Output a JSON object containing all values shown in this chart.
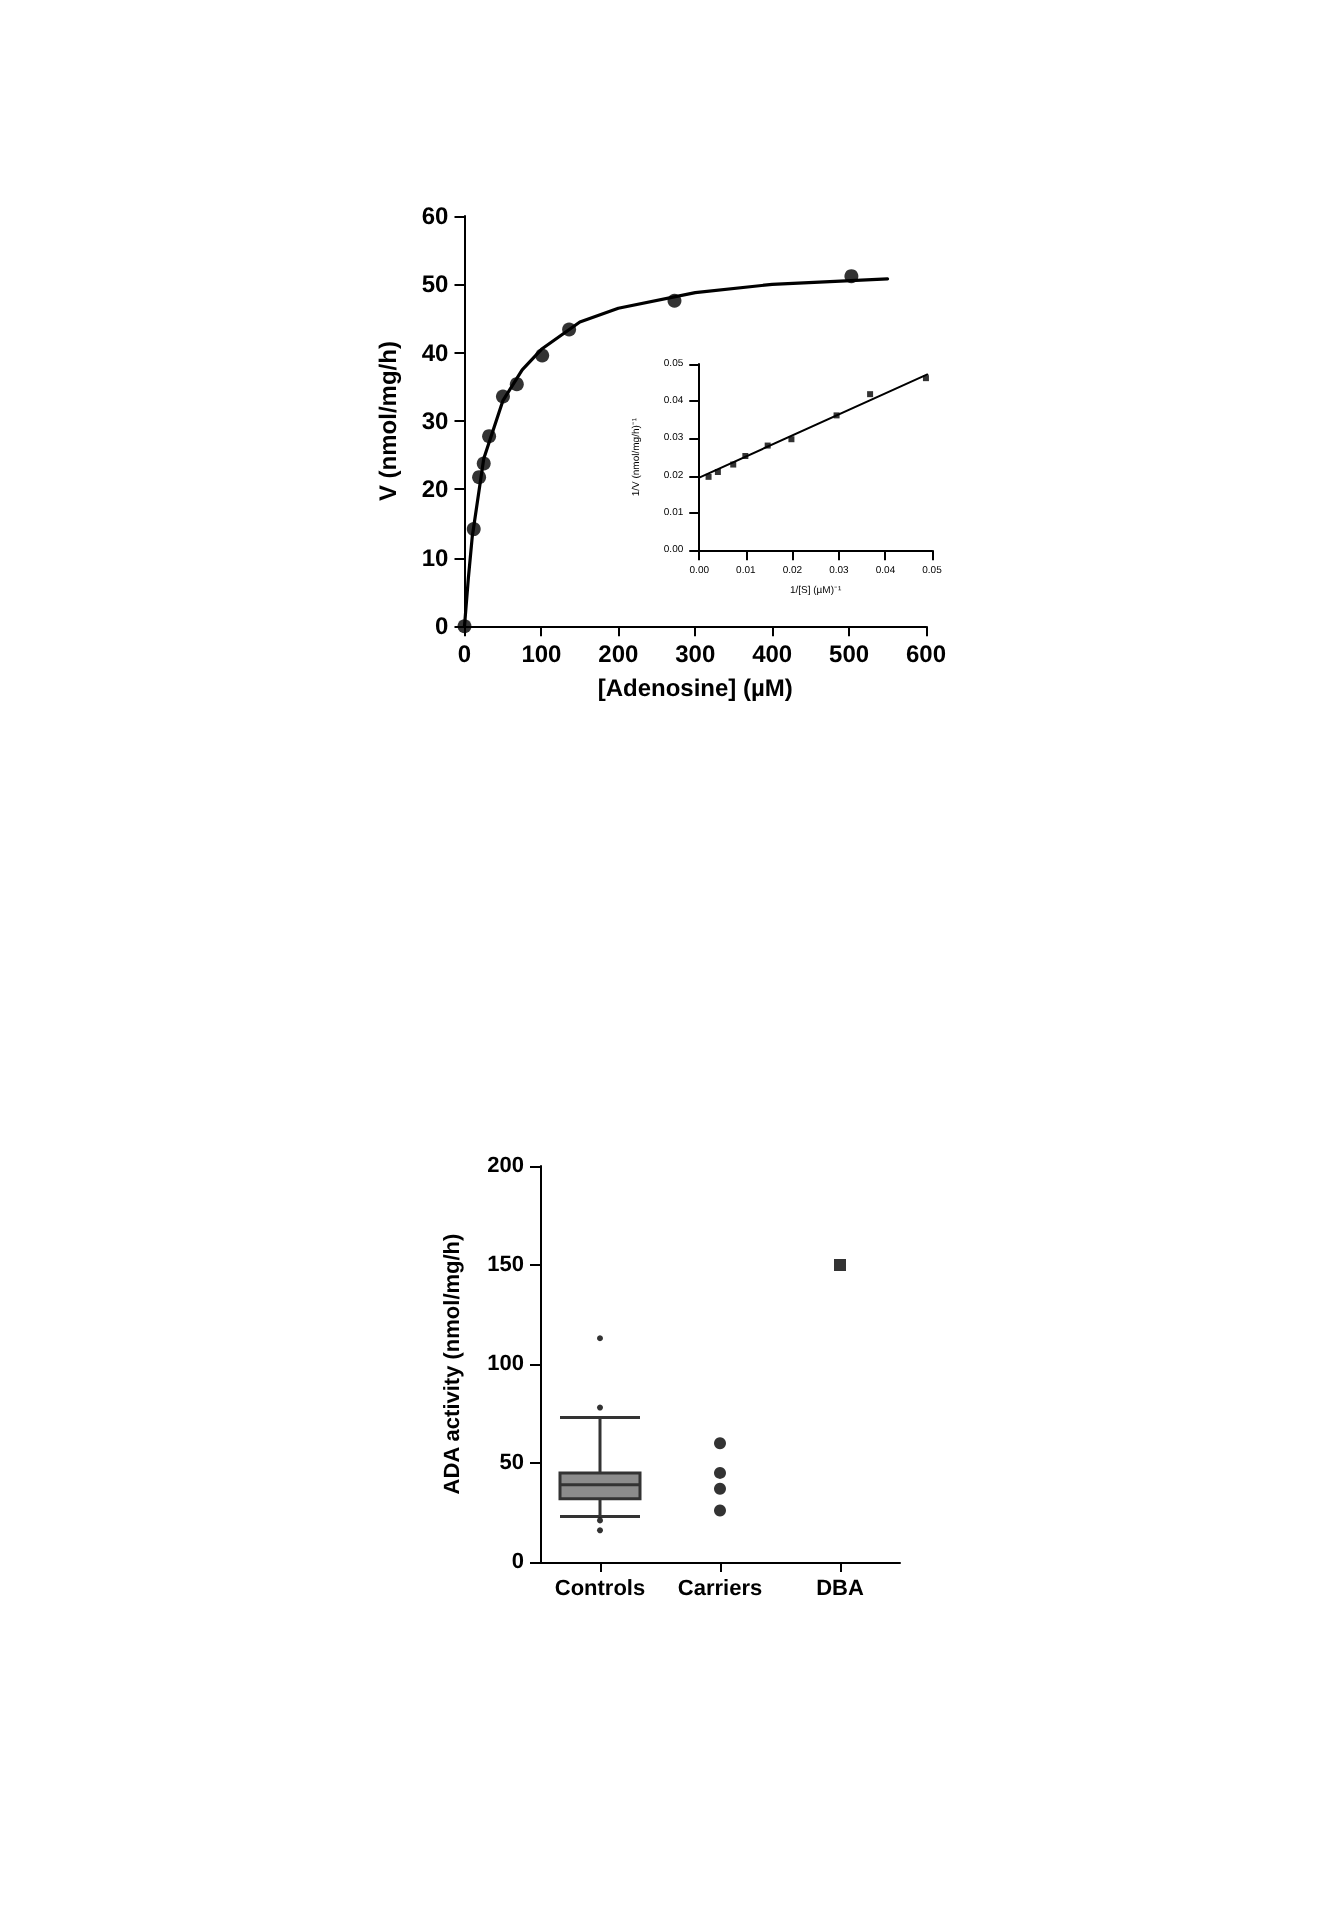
{
  "chart_data": [
    {
      "type": "scatter",
      "xlabel": "[Adenosine] (µM)",
      "ylabel": "V (nmol/mg/h)",
      "xlim": [
        0,
        600
      ],
      "xticks": [
        0,
        100,
        200,
        300,
        400,
        500,
        600
      ],
      "ylim": [
        0,
        60
      ],
      "yticks": [
        0,
        10,
        20,
        30,
        40,
        50,
        60
      ],
      "series": [
        {
          "type": "scatter",
          "color": "#000000",
          "marker": "circle",
          "x": [
            0,
            12,
            19,
            25,
            32,
            50,
            68,
            101,
            136,
            273,
            503
          ],
          "values": [
            0,
            14.2,
            21.8,
            23.8,
            27.8,
            33.6,
            35.4,
            39.6,
            43.4,
            47.6,
            51.2
          ]
        },
        {
          "type": "line",
          "color": "#000000",
          "marker": "none",
          "line_style": "solid",
          "x": [
            0,
            5,
            10,
            25,
            50,
            75,
            100,
            150,
            200,
            300,
            400,
            550
          ],
          "values": [
            0,
            7,
            13,
            24.5,
            33,
            37.5,
            40.5,
            44.5,
            46.5,
            48.8,
            50,
            50.8
          ]
        }
      ]
    },
    {
      "type": "scatter",
      "xlabel": "1/[S] (µM)⁻¹",
      "ylabel": "1/V (nmol/mg/h)⁻¹",
      "xlim": [
        0,
        0.05
      ],
      "xticks": [
        {
          "value": 0,
          "label": "0.00"
        },
        {
          "value": 0.01,
          "label": "0.01"
        },
        {
          "value": 0.02,
          "label": "0.02"
        },
        {
          "value": 0.03,
          "label": "0.03"
        },
        {
          "value": 0.04,
          "label": "0.04"
        },
        {
          "value": 0.05,
          "label": "0.05"
        }
      ],
      "ylim": [
        0,
        0.05
      ],
      "yticks": [
        {
          "value": 0,
          "label": "0.00"
        },
        {
          "value": 0.01,
          "label": "0.01"
        },
        {
          "value": 0.02,
          "label": "0.02"
        },
        {
          "value": 0.03,
          "label": "0.03"
        },
        {
          "value": 0.04,
          "label": "0.04"
        },
        {
          "value": 0.05,
          "label": "0.05"
        }
      ],
      "series": [
        {
          "type": "scatter",
          "color": "#000000",
          "marker": "square",
          "x": [
            0.002,
            0.004,
            0.0073,
            0.0099,
            0.0147,
            0.0198,
            0.0295,
            0.0367,
            0.0487
          ],
          "values": [
            0.0197,
            0.021,
            0.023,
            0.0253,
            0.0281,
            0.0298,
            0.0362,
            0.0419,
            0.0462
          ]
        },
        {
          "type": "line",
          "color": "#000000",
          "marker": "none",
          "line_style": "solid",
          "x": [
            0,
            0.049
          ],
          "values": [
            0.0195,
            0.0472
          ]
        }
      ]
    },
    {
      "type": "box",
      "categories": [
        "Controls",
        "Carriers",
        "DBA"
      ],
      "ylabel": "ADA activity (nmol/mg/h)",
      "ylim": [
        0,
        200
      ],
      "yticks": [
        0,
        50,
        100,
        150,
        200
      ],
      "series": [
        {
          "type": "box",
          "color": "#8c8c8c",
          "boxes": [
            {
              "low": 23,
              "q1": 32,
              "median": 39,
              "q3": 45,
              "high": 73,
              "outliers": [
                113,
                78,
                21,
                16
              ]
            },
            null,
            null
          ]
        },
        {
          "type": "scatter",
          "color": "#000000",
          "marker": "circle",
          "x": [
            "Carriers",
            "Carriers",
            "Carriers",
            "Carriers"
          ],
          "values": [
            60,
            45,
            37,
            26
          ]
        },
        {
          "type": "scatter",
          "color": "#000000",
          "marker": "square",
          "x": [
            "DBA"
          ],
          "values": [
            150
          ]
        }
      ]
    }
  ]
}
